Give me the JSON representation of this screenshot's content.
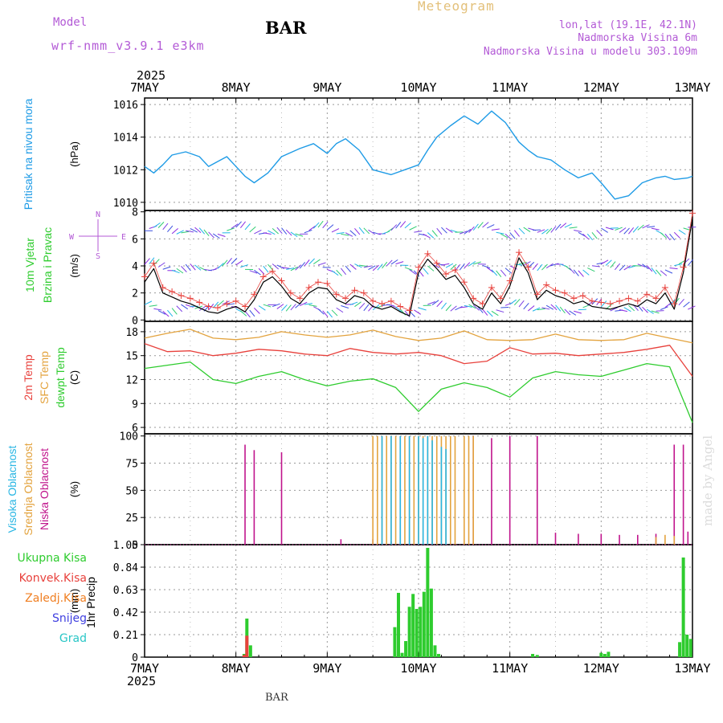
{
  "header": {
    "meteogram_title": "Meteogram",
    "station": "BAR",
    "model_label": "Model",
    "model_name": "wrf-nmm_v3.9.1 e3km",
    "lonlat": "lon,lat (19.1E, 42.1N)",
    "elevation": "Nadmorska Visina 6m",
    "model_elevation": "Nadmorska Visina u modelu 303.109m",
    "credit": "made by Angel",
    "footer_station": "BAR"
  },
  "colors": {
    "pressure": "#1e9be6",
    "temp2m": "#e8413c",
    "sfc": "#e3a33e",
    "dewpt": "#2ecc2e",
    "cloud_high": "#29b6e3",
    "cloud_mid": "#e3a33e",
    "cloud_low": "#c0148c",
    "precip_total": "#2ecc2e",
    "precip_conv": "#e8413c",
    "precip_frz": "#f07f22",
    "precip_snow": "#3f3fe0",
    "precip_hail": "#29c6c6",
    "wind_label": "#2ecc2e",
    "model_text": "#b35ad6"
  },
  "chart_data": [
    {
      "type": "line",
      "id": "pressure",
      "title": "Pritisak na nivou mora",
      "ylabel": "(hPa)",
      "ylim": [
        1009.5,
        1016.4
      ],
      "yticks": [
        1010,
        1012,
        1014,
        1016
      ],
      "x_days": [
        0,
        0.1,
        0.2,
        0.3,
        0.45,
        0.6,
        0.7,
        0.8,
        0.9,
        1.0,
        1.1,
        1.2,
        1.35,
        1.5,
        1.7,
        1.85,
        2.0,
        2.1,
        2.2,
        2.35,
        2.5,
        2.7,
        2.85,
        3.0,
        3.1,
        3.2,
        3.35,
        3.5,
        3.65,
        3.8,
        3.95,
        4.1,
        4.2,
        4.3,
        4.45,
        4.6,
        4.75,
        4.9,
        5.0,
        5.15,
        5.3,
        5.45,
        5.6,
        5.7,
        5.8,
        5.95,
        6.0
      ],
      "values": [
        1012.2,
        1011.8,
        1012.3,
        1012.9,
        1013.1,
        1012.8,
        1012.2,
        1012.5,
        1012.8,
        1012.2,
        1011.6,
        1011.2,
        1011.8,
        1012.8,
        1013.3,
        1013.6,
        1013.0,
        1013.6,
        1013.9,
        1013.2,
        1012.0,
        1011.7,
        1012.0,
        1012.3,
        1013.2,
        1014.0,
        1014.7,
        1015.3,
        1014.8,
        1015.6,
        1014.9,
        1013.7,
        1013.2,
        1012.8,
        1012.6,
        1012.0,
        1011.5,
        1011.8,
        1011.2,
        1010.2,
        1010.4,
        1011.2,
        1011.5,
        1011.6,
        1011.4,
        1011.5,
        1011.6
      ]
    },
    {
      "type": "line",
      "id": "wind",
      "title": "10m Vjetar",
      "subtitle": "Brzina i Pravac",
      "ylabel": "(m/s)",
      "compass": [
        "N",
        "S",
        "W",
        "E"
      ],
      "ylim": [
        -0.1,
        8.1
      ],
      "yticks": [
        0,
        2,
        4,
        6,
        8
      ],
      "x_days": [
        0,
        0.1,
        0.2,
        0.3,
        0.4,
        0.5,
        0.6,
        0.7,
        0.8,
        0.9,
        1.0,
        1.1,
        1.2,
        1.3,
        1.4,
        1.5,
        1.6,
        1.7,
        1.8,
        1.9,
        2.0,
        2.1,
        2.2,
        2.3,
        2.4,
        2.5,
        2.6,
        2.7,
        2.8,
        2.9,
        3.0,
        3.1,
        3.2,
        3.3,
        3.4,
        3.5,
        3.6,
        3.7,
        3.8,
        3.9,
        4.0,
        4.1,
        4.2,
        4.3,
        4.4,
        4.5,
        4.6,
        4.7,
        4.8,
        4.9,
        5.0,
        5.1,
        5.2,
        5.3,
        5.4,
        5.5,
        5.6,
        5.7,
        5.8,
        5.9,
        6.0
      ],
      "speed": [
        2.8,
        3.8,
        2.0,
        1.7,
        1.4,
        1.2,
        0.9,
        0.6,
        0.5,
        0.8,
        1.0,
        0.6,
        1.5,
        2.8,
        3.2,
        2.5,
        1.6,
        1.2,
        2.0,
        2.4,
        2.3,
        1.5,
        1.2,
        1.8,
        1.6,
        1.0,
        0.8,
        1.0,
        0.6,
        0.3,
        3.5,
        4.5,
        3.8,
        3.0,
        3.3,
        2.4,
        1.2,
        0.8,
        2.0,
        1.2,
        2.5,
        4.6,
        3.5,
        1.5,
        2.2,
        1.8,
        1.6,
        1.2,
        1.4,
        1.0,
        0.9,
        0.8,
        1.0,
        1.2,
        1.0,
        1.5,
        1.2,
        2.0,
        0.8,
        3.5,
        7.5
      ]
    },
    {
      "type": "line",
      "id": "temperature",
      "title": "2m Temp",
      "title2": "SFC Temp",
      "title3": "dewpt Temp",
      "ylabel": "(C)",
      "ylim": [
        5.2,
        19.3
      ],
      "yticks": [
        6,
        9,
        12,
        15,
        18
      ],
      "x_days": [
        0,
        0.25,
        0.5,
        0.75,
        1.0,
        1.25,
        1.5,
        1.75,
        2.0,
        2.25,
        2.5,
        2.75,
        3.0,
        3.25,
        3.5,
        3.75,
        4.0,
        4.25,
        4.5,
        4.75,
        5.0,
        5.25,
        5.5,
        5.75,
        6.0
      ],
      "series": [
        {
          "name": "SFC Temp",
          "color": "#e3a33e",
          "values": [
            17.2,
            17.8,
            18.3,
            17.2,
            17.0,
            17.3,
            18.0,
            17.6,
            17.3,
            17.6,
            18.2,
            17.4,
            16.9,
            17.2,
            18.1,
            17.0,
            16.9,
            17.0,
            17.7,
            17.0,
            16.9,
            17.0,
            17.8,
            17.2,
            16.6
          ]
        },
        {
          "name": "2m Temp",
          "color": "#e8413c",
          "values": [
            16.5,
            15.5,
            15.6,
            15.0,
            15.3,
            15.8,
            15.6,
            15.2,
            15.0,
            15.9,
            15.4,
            15.2,
            15.4,
            15.0,
            14.0,
            14.3,
            16.0,
            15.2,
            15.3,
            15.0,
            15.2,
            15.4,
            15.8,
            16.3,
            12.4
          ]
        },
        {
          "name": "dewpt Temp",
          "color": "#2ecc2e",
          "values": [
            13.4,
            13.8,
            14.2,
            12.0,
            11.5,
            12.4,
            13.0,
            12.0,
            11.2,
            11.8,
            12.1,
            11.0,
            8.0,
            10.8,
            11.6,
            11.0,
            9.8,
            12.2,
            13.0,
            12.6,
            12.4,
            13.2,
            14.0,
            13.6,
            6.6
          ]
        }
      ]
    },
    {
      "type": "bar",
      "id": "clouds",
      "title": "Visoka Oblacnost",
      "title2": "Srednja Oblacnost",
      "title3": "Niska Oblacnost",
      "ylabel": "(%)",
      "ylim": [
        0,
        102
      ],
      "yticks": [
        0,
        25,
        50,
        75,
        100
      ],
      "series": [
        {
          "name": "Niska Oblacnost",
          "color": "#c0148c",
          "x_days": [
            1.1,
            1.2,
            1.5,
            2.15,
            2.5,
            2.7,
            3.6,
            3.8,
            4.0,
            4.3,
            4.5,
            4.75,
            5.0,
            5.2,
            5.4,
            5.6,
            5.8,
            5.9,
            5.95
          ],
          "values": [
            92,
            87,
            85,
            5,
            5,
            3,
            100,
            98,
            100,
            100,
            11,
            10,
            10,
            9,
            9,
            10,
            92,
            92,
            12
          ]
        },
        {
          "name": "Srednja Oblacnost",
          "color": "#e3a33e",
          "x_days": [
            2.5,
            2.55,
            2.6,
            2.65,
            2.7,
            2.75,
            2.8,
            2.85,
            2.9,
            2.95,
            3.0,
            3.05,
            3.1,
            3.15,
            3.2,
            3.25,
            3.3,
            3.35,
            3.4,
            3.5,
            3.55,
            3.6,
            5.6,
            5.7,
            5.8
          ],
          "values": [
            100,
            100,
            100,
            100,
            100,
            100,
            100,
            100,
            100,
            100,
            100,
            100,
            100,
            100,
            100,
            100,
            100,
            100,
            100,
            100,
            100,
            100,
            7,
            9,
            8
          ]
        },
        {
          "name": "Visoka Oblacnost",
          "color": "#29b6e3",
          "x_days": [
            2.6,
            2.7,
            2.8,
            2.9,
            3.0,
            3.05,
            3.1,
            3.15,
            3.25,
            3.3
          ],
          "values": [
            100,
            100,
            100,
            100,
            100,
            98,
            100,
            96,
            90,
            88
          ]
        }
      ]
    },
    {
      "type": "bar",
      "id": "precip",
      "title": "1hr Precip",
      "ylabel": "(mm)",
      "legend": [
        "Ukupna Kisa",
        "Konvek.Kisa",
        "Zaledj.Kisa",
        "Snijeg",
        "Grad"
      ],
      "ylim": [
        0,
        1.05
      ],
      "yticks": [
        0,
        0.21,
        0.42,
        0.63,
        0.84,
        1.05
      ],
      "series": [
        {
          "name": "Ukupna Kisa",
          "color": "#2ecc2e",
          "x_days": [
            1.09,
            1.12,
            1.16,
            2.74,
            2.78,
            2.82,
            2.86,
            2.9,
            2.94,
            2.98,
            3.02,
            3.06,
            3.1,
            3.14,
            3.18,
            3.22,
            4.25,
            4.3,
            5.0,
            5.04,
            5.08,
            5.86,
            5.9,
            5.94,
            5.98
          ],
          "values": [
            0.03,
            0.36,
            0.11,
            0.28,
            0.6,
            0.04,
            0.15,
            0.47,
            0.59,
            0.45,
            0.47,
            0.61,
            1.02,
            0.64,
            0.11,
            0.03,
            0.03,
            0.02,
            0.04,
            0.03,
            0.05,
            0.14,
            0.93,
            0.21,
            0.17
          ]
        },
        {
          "name": "Konvek.Kisa",
          "color": "#e8413c",
          "x_days": [
            1.09,
            1.12
          ],
          "values": [
            0.02,
            0.2
          ]
        }
      ]
    }
  ],
  "time_axis": {
    "year": "2025",
    "days": [
      "7MAY",
      "8MAY",
      "9MAY",
      "10MAY",
      "11MAY",
      "12MAY",
      "13MAY"
    ]
  }
}
